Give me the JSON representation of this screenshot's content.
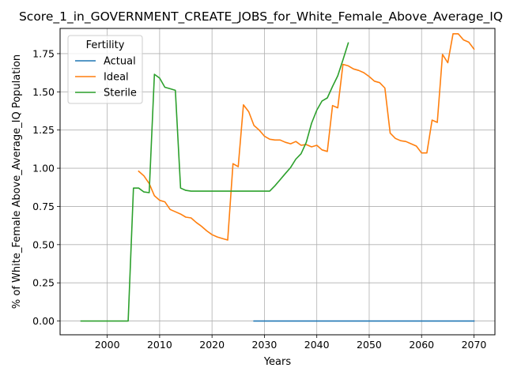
{
  "chart_data": {
    "type": "line",
    "title": "Score_1_in_GOVERNMENT_CREATE_JOBS_for_White_Female_Above_Average_IQ",
    "xlabel": "Years",
    "ylabel": "% of White_Female Above_Average_IQ Population",
    "xlim": [
      1991,
      2074
    ],
    "ylim": [
      -0.09,
      1.915
    ],
    "xticks": [
      2000,
      2010,
      2020,
      2030,
      2040,
      2050,
      2060,
      2070
    ],
    "yticks": [
      0.0,
      0.25,
      0.5,
      0.75,
      1.0,
      1.25,
      1.5,
      1.75
    ],
    "grid": true,
    "legend": {
      "title": "Fertility",
      "placement": "top-left"
    },
    "series": [
      {
        "name": "Actual",
        "color": "#1f77b4",
        "points": [
          [
            2028,
            0.0
          ],
          [
            2040,
            0.0
          ],
          [
            2050,
            0.0
          ],
          [
            2060,
            0.0
          ],
          [
            2070,
            0.0
          ]
        ]
      },
      {
        "name": "Ideal",
        "color": "#ff7f0e",
        "points": [
          [
            2006,
            0.98
          ],
          [
            2007,
            0.95
          ],
          [
            2008,
            0.9
          ],
          [
            2009,
            0.82
          ],
          [
            2010,
            0.79
          ],
          [
            2011,
            0.78
          ],
          [
            2012,
            0.73
          ],
          [
            2013,
            0.715
          ],
          [
            2014,
            0.7
          ],
          [
            2015,
            0.68
          ],
          [
            2016,
            0.675
          ],
          [
            2017,
            0.645
          ],
          [
            2018,
            0.62
          ],
          [
            2019,
            0.59
          ],
          [
            2020,
            0.565
          ],
          [
            2021,
            0.55
          ],
          [
            2022,
            0.54
          ],
          [
            2023,
            0.53
          ],
          [
            2024,
            1.03
          ],
          [
            2025,
            1.01
          ],
          [
            2026,
            1.415
          ],
          [
            2027,
            1.37
          ],
          [
            2028,
            1.28
          ],
          [
            2029,
            1.25
          ],
          [
            2030,
            1.21
          ],
          [
            2031,
            1.19
          ],
          [
            2032,
            1.185
          ],
          [
            2033,
            1.185
          ],
          [
            2034,
            1.17
          ],
          [
            2035,
            1.16
          ],
          [
            2036,
            1.175
          ],
          [
            2037,
            1.15
          ],
          [
            2038,
            1.155
          ],
          [
            2039,
            1.14
          ],
          [
            2040,
            1.15
          ],
          [
            2041,
            1.12
          ],
          [
            2042,
            1.11
          ],
          [
            2043,
            1.41
          ],
          [
            2044,
            1.395
          ],
          [
            2045,
            1.68
          ],
          [
            2046,
            1.67
          ],
          [
            2047,
            1.65
          ],
          [
            2048,
            1.64
          ],
          [
            2049,
            1.625
          ],
          [
            2050,
            1.6
          ],
          [
            2051,
            1.57
          ],
          [
            2052,
            1.56
          ],
          [
            2053,
            1.525
          ],
          [
            2054,
            1.23
          ],
          [
            2055,
            1.195
          ],
          [
            2056,
            1.18
          ],
          [
            2057,
            1.175
          ],
          [
            2058,
            1.16
          ],
          [
            2059,
            1.145
          ],
          [
            2060,
            1.1
          ],
          [
            2061,
            1.1
          ],
          [
            2062,
            1.315
          ],
          [
            2063,
            1.3
          ],
          [
            2064,
            1.745
          ],
          [
            2065,
            1.69
          ],
          [
            2066,
            1.88
          ],
          [
            2067,
            1.88
          ],
          [
            2068,
            1.84
          ],
          [
            2069,
            1.825
          ],
          [
            2070,
            1.78
          ]
        ]
      },
      {
        "name": "Sterile",
        "color": "#2ca02c",
        "points": [
          [
            1995,
            0.0
          ],
          [
            2000,
            0.0
          ],
          [
            2004,
            0.0
          ],
          [
            2005,
            0.87
          ],
          [
            2006,
            0.87
          ],
          [
            2007,
            0.845
          ],
          [
            2008,
            0.84
          ],
          [
            2009,
            1.615
          ],
          [
            2010,
            1.59
          ],
          [
            2011,
            1.53
          ],
          [
            2012,
            1.52
          ],
          [
            2013,
            1.51
          ],
          [
            2014,
            0.87
          ],
          [
            2015,
            0.855
          ],
          [
            2016,
            0.85
          ],
          [
            2020,
            0.85
          ],
          [
            2025,
            0.85
          ],
          [
            2031,
            0.85
          ],
          [
            2032,
            0.885
          ],
          [
            2033,
            0.925
          ],
          [
            2034,
            0.965
          ],
          [
            2035,
            1.005
          ],
          [
            2036,
            1.06
          ],
          [
            2037,
            1.095
          ],
          [
            2038,
            1.17
          ],
          [
            2039,
            1.295
          ],
          [
            2040,
            1.38
          ],
          [
            2041,
            1.44
          ],
          [
            2042,
            1.46
          ],
          [
            2043,
            1.535
          ],
          [
            2044,
            1.605
          ],
          [
            2045,
            1.71
          ],
          [
            2046,
            1.82
          ]
        ]
      }
    ]
  }
}
